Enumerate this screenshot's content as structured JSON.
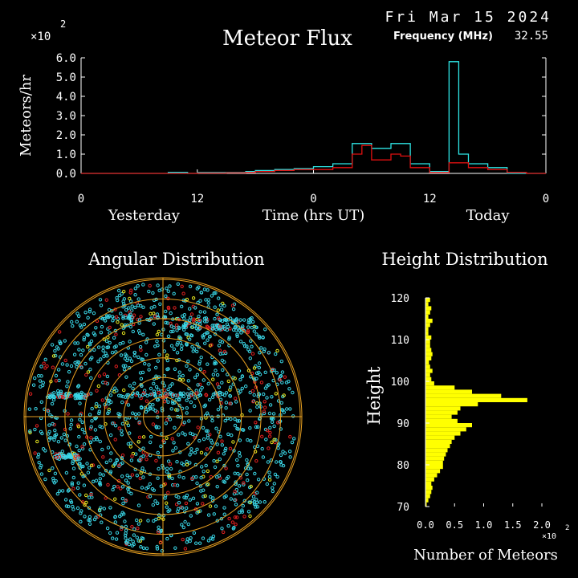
{
  "header": {
    "date": "Fri Mar 15 2024",
    "frequency_label": "Frequency (MHz)",
    "frequency_value": "32.55"
  },
  "chart_data": [
    {
      "id": "meteor-flux",
      "type": "line",
      "title": "Meteor Flux",
      "ylabel": "Meteors/hr",
      "y_scale_note": "×10",
      "y_scale_exp": "2",
      "ylim": [
        0,
        6
      ],
      "y_ticks": [
        "0.0",
        "1.0",
        "2.0",
        "3.0",
        "4.0",
        "5.0",
        "6.0"
      ],
      "xlim": [
        0,
        48
      ],
      "x_ticks": [
        {
          "x": 0,
          "label": "0"
        },
        {
          "x": 12,
          "label": "12"
        },
        {
          "x": 24,
          "label": "0"
        },
        {
          "x": 36,
          "label": "12"
        },
        {
          "x": 48,
          "label": "0"
        }
      ],
      "x_group_labels": [
        {
          "x": 6.5,
          "label": "Yesterday"
        },
        {
          "x": 24,
          "label": "Time (hrs UT)"
        },
        {
          "x": 42,
          "label": "Today"
        }
      ],
      "series": [
        {
          "color": "#2ee6e6",
          "step": true,
          "x": [
            0,
            1,
            2,
            3,
            4,
            5,
            6,
            7,
            8,
            9,
            10,
            11,
            12,
            13,
            14,
            15,
            16,
            17,
            18,
            19,
            20,
            21,
            22,
            23,
            24,
            25,
            26,
            27,
            28,
            29,
            30,
            31,
            32,
            33,
            34,
            35,
            36,
            37,
            38,
            39,
            40,
            41,
            42,
            43,
            44,
            45,
            46,
            47
          ],
          "y": [
            0,
            0,
            0,
            0,
            0,
            0,
            0,
            0,
            0,
            0.05,
            0.05,
            0,
            0.05,
            0.05,
            0.05,
            0.05,
            0.05,
            0.1,
            0.15,
            0.15,
            0.2,
            0.2,
            0.25,
            0.25,
            0.35,
            0.35,
            0.5,
            0.5,
            1.55,
            1.55,
            1.3,
            1.3,
            1.55,
            1.55,
            0.5,
            0.5,
            0.1,
            0.1,
            5.8,
            1.0,
            0.5,
            0.5,
            0.3,
            0.3,
            0,
            0,
            0,
            0
          ]
        },
        {
          "color": "#e01010",
          "step": true,
          "x": [
            0,
            1,
            2,
            3,
            4,
            5,
            6,
            7,
            8,
            9,
            10,
            11,
            12,
            13,
            14,
            15,
            16,
            17,
            18,
            19,
            20,
            21,
            22,
            23,
            24,
            25,
            26,
            27,
            28,
            29,
            30,
            31,
            32,
            33,
            34,
            35,
            36,
            37,
            38,
            39,
            40,
            41,
            42,
            43,
            44,
            45,
            46,
            47
          ],
          "y": [
            0,
            0,
            0,
            0,
            0,
            0,
            0,
            0,
            0,
            0,
            0,
            0,
            0.02,
            0.02,
            0.02,
            0.03,
            0.03,
            0.05,
            0.1,
            0.1,
            0.15,
            0.15,
            0.2,
            0.2,
            0.2,
            0.2,
            0.3,
            0.3,
            1.0,
            1.45,
            0.7,
            0.7,
            1.0,
            0.9,
            0.3,
            0.3,
            0.05,
            0.05,
            0.55,
            0.55,
            0.3,
            0.3,
            0.2,
            0.2,
            0.05,
            0.05,
            0,
            0
          ]
        }
      ]
    },
    {
      "id": "angular-distribution",
      "type": "scatter",
      "title": "Angular Distribution",
      "rings": 7,
      "point_colors": [
        "#3ad6e6",
        "#e02020",
        "#e8e820"
      ]
    },
    {
      "id": "height-distribution",
      "type": "bar",
      "orientation": "horizontal",
      "title": "Height Distribution",
      "ylabel": "Height",
      "xlabel": "Number of Meteors",
      "x_scale_note": "×10",
      "x_scale_exp": "2",
      "ylim": [
        70,
        120
      ],
      "xlim": [
        0,
        2.0
      ],
      "y_ticks": [
        "70",
        "80",
        "90",
        "100",
        "110",
        "120"
      ],
      "x_ticks": [
        "0.0",
        "0.5",
        "1.0",
        "1.5",
        "2.0"
      ],
      "color": "#ffff00",
      "heights": [
        70,
        71,
        72,
        73,
        74,
        75,
        76,
        77,
        78,
        79,
        80,
        81,
        82,
        83,
        84,
        85,
        86,
        87,
        88,
        89,
        90,
        91,
        92,
        93,
        94,
        95,
        96,
        97,
        98,
        99,
        100,
        101,
        102,
        103,
        104,
        105,
        106,
        107,
        108,
        109,
        110,
        111,
        112,
        113,
        114,
        115,
        116,
        117,
        118,
        119
      ],
      "values": [
        0.02,
        0.05,
        0.08,
        0.1,
        0.12,
        0.1,
        0.15,
        0.2,
        0.25,
        0.3,
        0.3,
        0.32,
        0.35,
        0.38,
        0.42,
        0.45,
        0.5,
        0.6,
        0.7,
        0.8,
        0.55,
        0.45,
        0.55,
        0.6,
        0.9,
        1.75,
        1.3,
        0.8,
        0.5,
        0.15,
        0.1,
        0.08,
        0.12,
        0.08,
        0.06,
        0.1,
        0.12,
        0.1,
        0.08,
        0.08,
        0.1,
        0.05,
        0.05,
        0.08,
        0.12,
        0.05,
        0.08,
        0.1,
        0.05,
        0.08
      ]
    }
  ]
}
